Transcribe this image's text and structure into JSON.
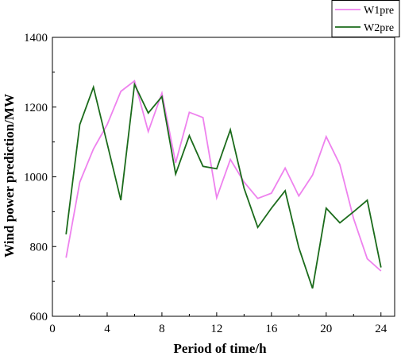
{
  "chart_data": {
    "type": "line",
    "title": "",
    "xlabel": "Period of time/h",
    "ylabel": "Wind power prediction/MW",
    "xlim": [
      0,
      25
    ],
    "ylim": [
      600,
      1400
    ],
    "xticks": [
      0,
      4,
      8,
      12,
      16,
      20,
      24
    ],
    "yticks": [
      600,
      800,
      1000,
      1200,
      1400
    ],
    "grid": false,
    "legend_position": "top-right",
    "x": [
      1,
      2,
      3,
      4,
      5,
      6,
      7,
      8,
      9,
      10,
      11,
      12,
      13,
      14,
      15,
      16,
      17,
      18,
      19,
      20,
      21,
      22,
      23,
      24
    ],
    "series": [
      {
        "name": "W1pre",
        "color": "#ee82ee",
        "values": [
          768,
          985,
          1080,
          1150,
          1245,
          1275,
          1130,
          1240,
          1040,
          1185,
          1170,
          940,
          1050,
          985,
          938,
          953,
          1025,
          945,
          1005,
          1115,
          1035,
          880,
          765,
          730
        ]
      },
      {
        "name": "W2pre",
        "color": "#1b6b1b",
        "values": [
          835,
          1150,
          1257,
          1095,
          933,
          1265,
          1183,
          1230,
          1008,
          1118,
          1030,
          1023,
          1135,
          967,
          855,
          910,
          960,
          797,
          680,
          910,
          868,
          900,
          933,
          740
        ]
      }
    ]
  }
}
